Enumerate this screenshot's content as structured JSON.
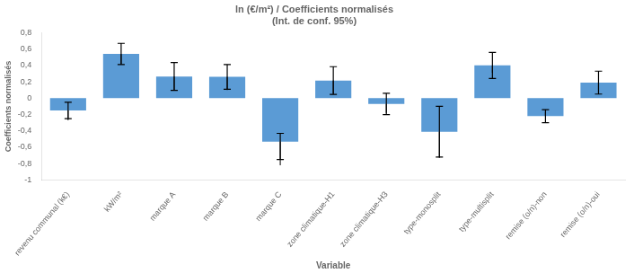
{
  "chart_data": {
    "type": "bar",
    "title": "ln (€/m²) / Coefficients normalisés\n(Int. de conf. 95%)",
    "xlabel": "Variable",
    "ylabel": "Coefficients normalisés",
    "categories": [
      "revenu communal (k€)",
      "kW/m²",
      "marque A",
      "marque B",
      "marque C",
      "zone climatique-H1",
      "zone climatique-H3",
      "type-monosplit",
      "type-multisplit",
      "remise (o/n)-non",
      "remise (o/n)-oui"
    ],
    "values": [
      -0.15,
      0.54,
      0.265,
      0.26,
      -0.53,
      0.215,
      -0.07,
      -0.41,
      0.4,
      -0.22,
      0.19
    ],
    "err_low": [
      0.1,
      0.13,
      0.17,
      0.15,
      0.22,
      0.17,
      0.13,
      0.31,
      0.16,
      0.08,
      0.14
    ],
    "err_high": [
      0.1,
      0.13,
      0.17,
      0.15,
      0.1,
      0.17,
      0.13,
      0.31,
      0.16,
      0.08,
      0.14
    ],
    "ann_line_tips": [
      -0.27,
      0.42,
      0.1,
      0.1,
      -0.82,
      0.055,
      -0.18,
      -0.73,
      0.31,
      -0.17,
      0.065
    ],
    "color": "#5B9BD5",
    "ylim": [
      -1.0,
      0.8
    ],
    "yticks": [
      -1,
      {
        "value": -0.8,
        "label": "-0,8"
      },
      {
        "value": -0.6,
        "label": "-0,6"
      },
      {
        "value": -0.4,
        "label": "-0,4"
      },
      {
        "value": -0.2,
        "label": "-0,2"
      },
      0,
      {
        "value": 0.2,
        "label": "0,2"
      },
      {
        "value": 0.4,
        "label": "0,4"
      },
      {
        "value": 0.6,
        "label": "0,6"
      },
      {
        "value": 0.8,
        "label": "0,8"
      }
    ],
    "grid": false
  }
}
